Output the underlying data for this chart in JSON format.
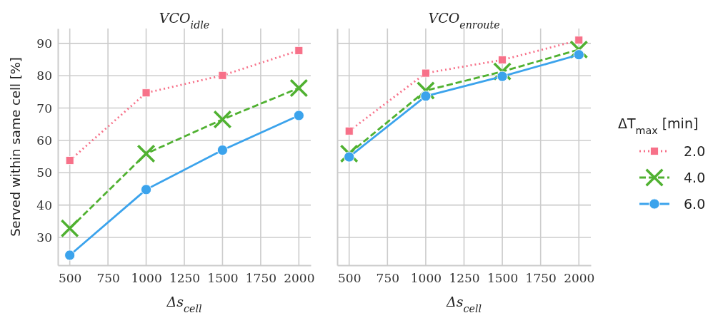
{
  "chart_data": [
    {
      "type": "line",
      "title": "VCO$_{idle}$",
      "xlabel": "Δs$_{cell}$",
      "ylabel": "Served within same cell [%]",
      "x": [
        500,
        1000,
        1500,
        2000
      ],
      "xlim": [
        422,
        2078
      ],
      "xticks": [
        500,
        750,
        1000,
        1250,
        1500,
        1750,
        2000
      ],
      "ylim": [
        21.4,
        94.6
      ],
      "yticks": [
        30,
        40,
        50,
        60,
        70,
        80,
        90
      ],
      "grid": true,
      "series": [
        {
          "color": "#f77189",
          "marker": "square",
          "line_style": "dotted",
          "values": [
            53.8,
            74.7,
            80.1,
            87.8
          ]
        },
        {
          "color": "#50b131",
          "marker": "cross",
          "line_style": "dashed",
          "values": [
            32.8,
            55.9,
            66.5,
            76.2
          ]
        },
        {
          "color": "#3ba3ec",
          "marker": "circle",
          "line_style": "solid",
          "values": [
            24.5,
            44.8,
            57.0,
            67.7
          ]
        }
      ]
    },
    {
      "type": "line",
      "title": "VCO$_{enroute}$",
      "xlabel": "Δs$_{cell}$",
      "legend_title": "ΔT$_{max}$ [min]",
      "legend": "right",
      "tick_labels": "x",
      "x": [
        500,
        1000,
        1500,
        2000
      ],
      "xlim": [
        422,
        2078
      ],
      "xticks": [
        500,
        750,
        1000,
        1250,
        1500,
        1750,
        2000
      ],
      "ylim": [
        21.4,
        94.6
      ],
      "yticks": [
        30,
        40,
        50,
        60,
        70,
        80,
        90
      ],
      "grid": true,
      "series": [
        {
          "name": "2.0",
          "color": "#f77189",
          "marker": "square",
          "line_style": "dotted",
          "values": [
            62.9,
            80.8,
            84.9,
            91.0
          ]
        },
        {
          "name": "4.0",
          "color": "#50b131",
          "marker": "cross",
          "line_style": "dashed",
          "values": [
            55.9,
            75.4,
            81.3,
            88.1
          ]
        },
        {
          "name": "6.0",
          "color": "#3ba3ec",
          "marker": "circle",
          "line_style": "solid",
          "values": [
            54.9,
            73.7,
            79.8,
            86.5
          ]
        }
      ]
    }
  ]
}
